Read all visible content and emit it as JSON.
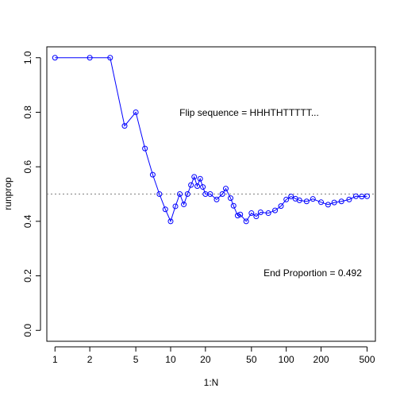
{
  "chart_data": {
    "type": "line",
    "xlabel": "1:N",
    "ylabel": "runprop",
    "x_scale": "log",
    "xlim": [
      0.85,
      590
    ],
    "ylim": [
      -0.04,
      1.04
    ],
    "x_ticks": [
      1,
      2,
      5,
      10,
      20,
      50,
      100,
      200,
      500
    ],
    "x_tick_labels": [
      "1",
      "2",
      "5",
      "10",
      "20",
      "50",
      "100",
      "200",
      "500"
    ],
    "y_ticks": [
      0.0,
      0.2,
      0.4,
      0.6,
      0.8,
      1.0
    ],
    "y_tick_labels": [
      "0.0",
      "0.2",
      "0.4",
      "0.6",
      "0.8",
      "1.0"
    ],
    "reference_line": {
      "y": 0.5,
      "style": "dotted",
      "color": "#808080"
    },
    "series_color": "#0000ff",
    "marker": "open-circle",
    "x": [
      1,
      2,
      3,
      4,
      5,
      6,
      7,
      8,
      9,
      10,
      11,
      12,
      13,
      14,
      15,
      16,
      17,
      18,
      19,
      20,
      22,
      25,
      28,
      30,
      33,
      35,
      38,
      40,
      45,
      50,
      55,
      60,
      70,
      80,
      90,
      100,
      110,
      120,
      130,
      150,
      170,
      200,
      230,
      260,
      300,
      350,
      400,
      450,
      500
    ],
    "y": [
      1.0,
      1.0,
      1.0,
      0.75,
      0.8,
      0.667,
      0.571,
      0.5,
      0.444,
      0.4,
      0.455,
      0.5,
      0.462,
      0.5,
      0.533,
      0.563,
      0.529,
      0.556,
      0.526,
      0.5,
      0.5,
      0.48,
      0.5,
      0.52,
      0.485,
      0.457,
      0.421,
      0.425,
      0.4,
      0.43,
      0.418,
      0.433,
      0.43,
      0.44,
      0.456,
      0.48,
      0.491,
      0.483,
      0.477,
      0.473,
      0.482,
      0.47,
      0.461,
      0.469,
      0.473,
      0.48,
      0.492,
      0.491,
      0.492
    ],
    "annotations": {
      "flip_sequence": "Flip sequence = HHHTHTTTTT...",
      "end_proportion": "End Proportion =  0.492"
    }
  }
}
